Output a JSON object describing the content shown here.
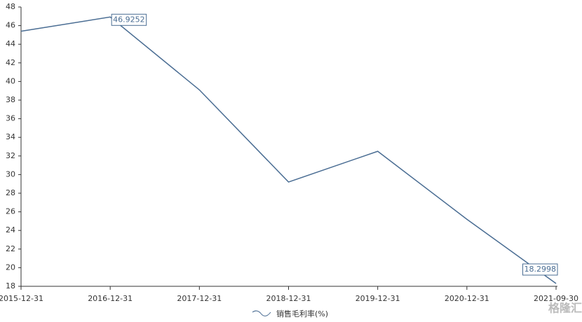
{
  "chart_data": {
    "type": "line",
    "categories": [
      "2015-12-31",
      "2016-12-31",
      "2017-12-31",
      "2018-12-31",
      "2019-12-31",
      "2020-12-31",
      "2021-09-30"
    ],
    "series": [
      {
        "name": "销售毛利率(%)",
        "color": "#4a6d93",
        "values": [
          45.4,
          46.9252,
          39.1,
          29.2,
          32.5,
          25.2,
          18.2998
        ]
      }
    ],
    "ylim": [
      18,
      48
    ],
    "yticks": [
      18,
      20,
      22,
      24,
      26,
      28,
      30,
      32,
      34,
      36,
      38,
      40,
      42,
      44,
      46,
      48
    ],
    "grid": false,
    "point_labels": [
      "max",
      "min"
    ],
    "legend": "bottom",
    "watermark": "格隆汇"
  }
}
